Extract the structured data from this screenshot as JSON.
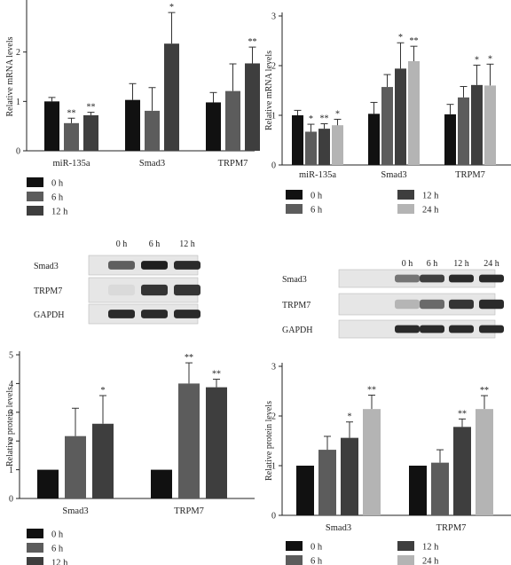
{
  "colors": {
    "0 h": "#111111",
    "6 h": "#5c5c5c",
    "12 h": "#3e3e3e",
    "24 h": "#b4b4b4"
  },
  "chart_data": [
    {
      "type": "bar",
      "ylabel": "Relative mRNA levels",
      "ylim": [
        0,
        3
      ],
      "yticks": [
        0,
        1,
        2
      ],
      "categories": [
        "miR-135a",
        "Smad3",
        "TRPM7"
      ],
      "series": [
        {
          "name": "0 h",
          "values": [
            1.0,
            1.03,
            0.98
          ],
          "errors": [
            0.08,
            0.33,
            0.2
          ],
          "stars": [
            "",
            "",
            ""
          ]
        },
        {
          "name": "6 h",
          "values": [
            0.56,
            0.81,
            1.21
          ],
          "errors": [
            0.1,
            0.47,
            0.55
          ],
          "stars": [
            "**",
            "",
            ""
          ]
        },
        {
          "name": "12 h",
          "values": [
            0.72,
            2.17,
            1.77
          ],
          "errors": [
            0.06,
            0.63,
            0.33
          ],
          "stars": [
            "**",
            "*",
            "**"
          ]
        }
      ]
    },
    {
      "type": "bar",
      "ylabel": "Relative mRNA levels",
      "ylim": [
        0,
        3
      ],
      "yticks": [
        0,
        1,
        2,
        3
      ],
      "categories": [
        "miR-135a",
        "Smad3",
        "TRPM7"
      ],
      "series": [
        {
          "name": "0 h",
          "values": [
            1.0,
            1.03,
            1.02
          ],
          "errors": [
            0.1,
            0.23,
            0.2
          ],
          "stars": [
            "",
            "",
            ""
          ]
        },
        {
          "name": "6 h",
          "values": [
            0.67,
            1.57,
            1.36
          ],
          "errors": [
            0.15,
            0.25,
            0.22
          ],
          "stars": [
            "*",
            "",
            ""
          ]
        },
        {
          "name": "12 h",
          "values": [
            0.73,
            1.94,
            1.61
          ],
          "errors": [
            0.1,
            0.52,
            0.4
          ],
          "stars": [
            "**",
            "*",
            "*"
          ]
        },
        {
          "name": "24 h",
          "values": [
            0.8,
            2.09,
            1.6
          ],
          "errors": [
            0.12,
            0.3,
            0.43
          ],
          "stars": [
            "*",
            "**",
            "*"
          ]
        }
      ]
    },
    {
      "type": "bar",
      "ylabel": "Relative protein levels",
      "ylim": [
        0,
        5
      ],
      "yticks": [
        0,
        1,
        2,
        3,
        4,
        5
      ],
      "categories": [
        "Smad3",
        "TRPM7"
      ],
      "series": [
        {
          "name": "0 h",
          "values": [
            1.0,
            1.0
          ],
          "errors": [
            0,
            0
          ],
          "stars": [
            "",
            ""
          ]
        },
        {
          "name": "6 h",
          "values": [
            2.17,
            4.0
          ],
          "errors": [
            0.97,
            0.72
          ],
          "stars": [
            "",
            "**"
          ]
        },
        {
          "name": "12 h",
          "values": [
            2.6,
            3.87
          ],
          "errors": [
            0.98,
            0.28
          ],
          "stars": [
            "*",
            "**"
          ]
        }
      ]
    },
    {
      "type": "bar",
      "ylabel": "Relative protein levels",
      "ylim": [
        0,
        3
      ],
      "yticks": [
        0,
        1,
        2,
        3
      ],
      "categories": [
        "Smad3",
        "TRPM7"
      ],
      "series": [
        {
          "name": "0 h",
          "values": [
            1.0,
            1.0
          ],
          "errors": [
            0,
            0
          ],
          "stars": [
            "",
            ""
          ]
        },
        {
          "name": "6 h",
          "values": [
            1.32,
            1.06
          ],
          "errors": [
            0.27,
            0.26
          ],
          "stars": [
            "",
            ""
          ]
        },
        {
          "name": "12 h",
          "values": [
            1.56,
            1.78
          ],
          "errors": [
            0.32,
            0.16
          ],
          "stars": [
            "*",
            "**"
          ]
        },
        {
          "name": "24 h",
          "values": [
            2.14,
            2.14
          ],
          "errors": [
            0.28,
            0.27
          ],
          "stars": [
            "**",
            "**"
          ]
        }
      ]
    }
  ],
  "blots": [
    {
      "lanes": [
        "0 h",
        "6 h",
        "12 h"
      ],
      "rows": [
        "Smad3",
        "TRPM7",
        "GAPDH"
      ],
      "intensity": [
        [
          0.65,
          0.95,
          0.9
        ],
        [
          0.08,
          0.85,
          0.85
        ],
        [
          0.9,
          0.9,
          0.9
        ]
      ]
    },
    {
      "lanes": [
        "0 h",
        "6 h",
        "12 h",
        "24 h"
      ],
      "rows": [
        "Smad3",
        "TRPM7",
        "GAPDH"
      ],
      "intensity": [
        [
          0.55,
          0.8,
          0.9,
          0.9
        ],
        [
          0.25,
          0.6,
          0.85,
          0.9
        ],
        [
          0.9,
          0.9,
          0.9,
          0.9
        ]
      ]
    }
  ]
}
